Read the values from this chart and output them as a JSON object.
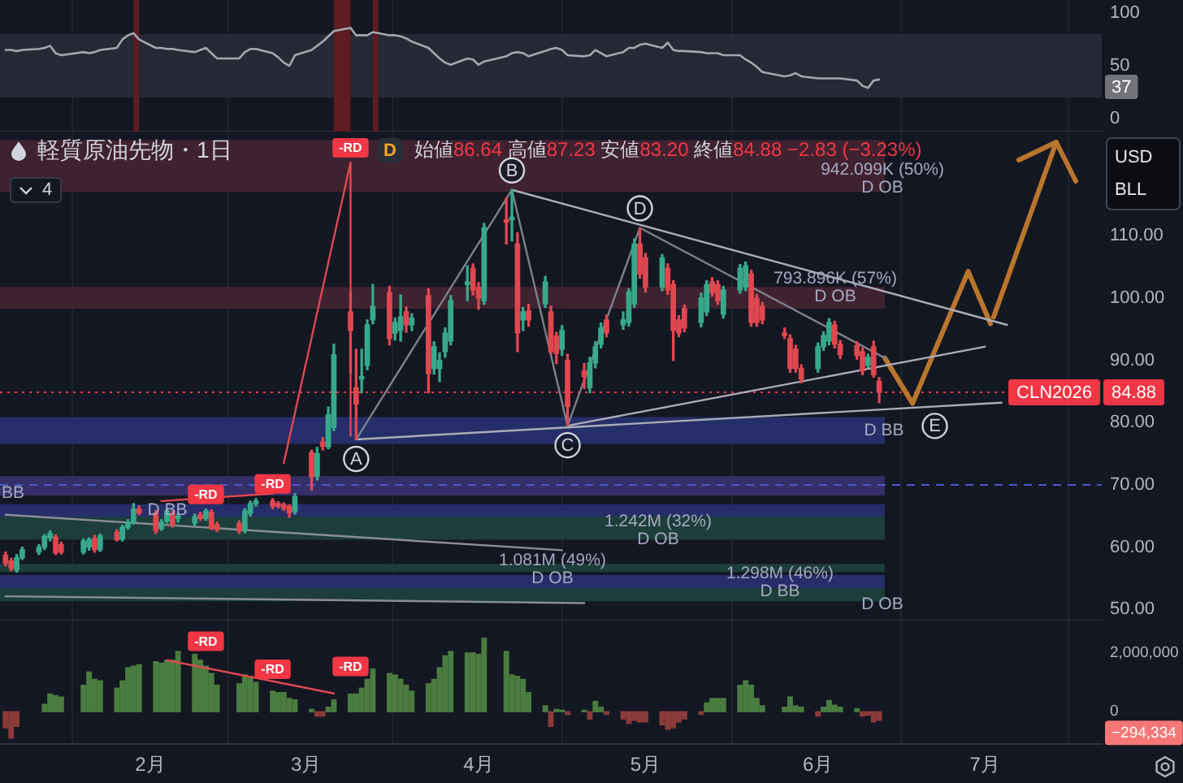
{
  "chart_data": [
    {
      "type": "line",
      "x": [
        "--01-06",
        "--01-07",
        "--01-08",
        "--01-09",
        "--01-12",
        "--01-13",
        "--01-14",
        "--01-15",
        "--01-16",
        "--01-20",
        "--01-21",
        "--01-22",
        "--01-23",
        "--01-26",
        "--01-27",
        "--01-28",
        "--01-29",
        "--01-30",
        "--02-02",
        "--02-03",
        "--02-04",
        "--02-05",
        "--02-06",
        "--02-09",
        "--02-10",
        "--02-11",
        "--02-12",
        "--02-13",
        "--02-17",
        "--02-18",
        "--02-19",
        "--02-20",
        "--02-23",
        "--02-24",
        "--02-25",
        "--02-26",
        "--02-27",
        "--03-02",
        "--03-03",
        "--03-04",
        "--03-05",
        "--03-06",
        "--03-09",
        "--03-10",
        "--03-11",
        "--03-12",
        "--03-13",
        "--03-16",
        "--03-17",
        "--03-18",
        "--03-19",
        "--03-20",
        "--03-23",
        "--03-24",
        "--03-25",
        "--03-26",
        "--03-27",
        "--03-30",
        "--03-31",
        "--04-01",
        "--04-02",
        "--04-06",
        "--04-07",
        "--04-08",
        "--04-09",
        "--04-10",
        "--04-13",
        "--04-14",
        "--04-15",
        "--04-16",
        "--04-17",
        "--04-20",
        "--04-21",
        "--04-22",
        "--04-23",
        "--04-24",
        "--04-27",
        "--04-28",
        "--04-29",
        "--04-30",
        "--05-01",
        "--05-04",
        "--05-05",
        "--05-06",
        "--05-07",
        "--05-08",
        "--05-11",
        "--05-12",
        "--05-13",
        "--05-14",
        "--05-15",
        "--05-18",
        "--05-19",
        "--05-20",
        "--05-21",
        "--05-22",
        "--05-26",
        "--05-27",
        "--05-28",
        "--05-29",
        "--06-01",
        "--06-02",
        "--06-03",
        "--06-04",
        "--06-05",
        "--06-08",
        "--06-09",
        "--06-10",
        "--06-11",
        "--06-12"
      ],
      "values": [
        65,
        65,
        64,
        65,
        66,
        67,
        69,
        62,
        60,
        63,
        62,
        63,
        65,
        67,
        75,
        79,
        81,
        75,
        67,
        67,
        66,
        66,
        65,
        63,
        65,
        67,
        62,
        57,
        57,
        63,
        66,
        66,
        62,
        58,
        53,
        50,
        60,
        65,
        69,
        73,
        78,
        83,
        86,
        79,
        79,
        79,
        82,
        79,
        79,
        78,
        76,
        73,
        67,
        62,
        57,
        53,
        51,
        57,
        56,
        51,
        54,
        59,
        62,
        63,
        62,
        59,
        64,
        66,
        67,
        65,
        60,
        59,
        60,
        65,
        62,
        59,
        63,
        67,
        67,
        70,
        71,
        67,
        72,
        65,
        64,
        64,
        63,
        62,
        62,
        62,
        60,
        60,
        56,
        53,
        49,
        44,
        40,
        41,
        43,
        40,
        38,
        38,
        38,
        38,
        38,
        36,
        31,
        29,
        36,
        37
      ],
      "color": "#a3a6af",
      "annotations": [
        "37"
      ],
      "xlim": [
        "--01-05",
        "--07-22"
      ],
      "xticks": [
        {
          "value": "--02-01",
          "label": null
        },
        {
          "value": "--03-01",
          "label": null
        },
        {
          "value": "--04-01",
          "label": null
        },
        {
          "value": "--05-01",
          "label": null
        },
        {
          "value": "--06-01",
          "label": null
        },
        {
          "value": "--07-01",
          "label": null
        }
      ],
      "ylim": [
        -12.5,
        112.5
      ],
      "yticks": [
        0,
        50,
        100
      ],
      "bands": [
        {
          "axis": "y",
          "from": 20,
          "to": 80,
          "color": "#252935"
        },
        {
          "axis": "x",
          "from": "--01-29",
          "to": "--01-30",
          "color": "#5e1b22"
        },
        {
          "axis": "x",
          "from": "--03-06",
          "to": "--03-09",
          "color": "#5e1b22"
        },
        {
          "axis": "x",
          "from": "--03-13",
          "to": "--03-14",
          "color": "#5e1b22"
        }
      ],
      "grid": "x",
      "tick_labels": "y"
    },
    {
      "type": "candlestick",
      "title": "軽質原油先物・1日",
      "subtitle": "始値86.64 高値87.23 安値83.20 終値84.88 −2.83 (−3.23%)",
      "ylabel": "USD\nBLL",
      "x": [
        "--01-06",
        "--01-07",
        "--01-08",
        "--01-09",
        "--01-12",
        "--01-13",
        "--01-14",
        "--01-15",
        "--01-16",
        "--01-20",
        "--01-21",
        "--01-22",
        "--01-23",
        "--01-26",
        "--01-27",
        "--01-28",
        "--01-29",
        "--01-30",
        "--02-02",
        "--02-03",
        "--02-04",
        "--02-05",
        "--02-06",
        "--02-09",
        "--02-10",
        "--02-11",
        "--02-12",
        "--02-13",
        "--02-17",
        "--02-18",
        "--02-19",
        "--02-20",
        "--02-23",
        "--02-24",
        "--02-25",
        "--02-26",
        "--02-27",
        "--03-02",
        "--03-03",
        "--03-04",
        "--03-05",
        "--03-06",
        "--03-09",
        "--03-10",
        "--03-11",
        "--03-12",
        "--03-13",
        "--03-16",
        "--03-17",
        "--03-18",
        "--03-19",
        "--03-20",
        "--03-23",
        "--03-24",
        "--03-25",
        "--03-26",
        "--03-27",
        "--03-30",
        "--03-31",
        "--04-01",
        "--04-02",
        "--04-06",
        "--04-07",
        "--04-08",
        "--04-09",
        "--04-10",
        "--04-13",
        "--04-14",
        "--04-15",
        "--04-16",
        "--04-17",
        "--04-20",
        "--04-21",
        "--04-22",
        "--04-23",
        "--04-24",
        "--04-27",
        "--04-28",
        "--04-29",
        "--04-30",
        "--05-01",
        "--05-04",
        "--05-05",
        "--05-06",
        "--05-07",
        "--05-08",
        "--05-11",
        "--05-12",
        "--05-13",
        "--05-14",
        "--05-15",
        "--05-18",
        "--05-19",
        "--05-20",
        "--05-21",
        "--05-22",
        "--05-26",
        "--05-27",
        "--05-28",
        "--05-29",
        "--06-01",
        "--06-02",
        "--06-03",
        "--06-04",
        "--06-05",
        "--06-08",
        "--06-09",
        "--06-10",
        "--06-11",
        "--06-12"
      ],
      "ohlc": [
        [
          58.7,
          59.2,
          57.0,
          57.4
        ],
        [
          57.8,
          58.2,
          56.2,
          56.6
        ],
        [
          56.3,
          58.8,
          56.0,
          58.3
        ],
        [
          58.3,
          60.0,
          58.0,
          59.6
        ],
        [
          59.2,
          60.4,
          58.8,
          60.0
        ],
        [
          60.0,
          62.0,
          59.6,
          61.7
        ],
        [
          61.5,
          62.6,
          61.0,
          62.2
        ],
        [
          61.6,
          62.0,
          58.8,
          59.1
        ],
        [
          60.4,
          60.8,
          58.9,
          59.2
        ],
        [
          59.2,
          61.3,
          58.9,
          61.0
        ],
        [
          60.0,
          61.5,
          59.5,
          61.2
        ],
        [
          61.4,
          61.9,
          59.2,
          59.6
        ],
        [
          59.6,
          62.1,
          59.3,
          61.8
        ],
        [
          62.4,
          62.8,
          61.0,
          61.2
        ],
        [
          61.3,
          63.5,
          61.0,
          63.2
        ],
        [
          63.2,
          64.4,
          62.9,
          64.0
        ],
        [
          64.0,
          67.0,
          63.7,
          66.1
        ],
        [
          66.1,
          66.6,
          65.2,
          65.5
        ],
        [
          65.5,
          65.9,
          62.2,
          62.6
        ],
        [
          63.0,
          64.4,
          62.7,
          64.0
        ],
        [
          64.2,
          66.2,
          63.9,
          65.8
        ],
        [
          65.4,
          65.8,
          63.2,
          63.6
        ],
        [
          64.6,
          65.4,
          64.0,
          65.0
        ],
        [
          63.9,
          65.3,
          63.5,
          64.9
        ],
        [
          65.2,
          65.6,
          64.3,
          64.6
        ],
        [
          64.6,
          66.1,
          64.3,
          65.8
        ],
        [
          65.6,
          66.0,
          62.8,
          63.0
        ],
        [
          63.6,
          64.0,
          62.5,
          62.8
        ],
        [
          63.8,
          64.2,
          62.2,
          62.6
        ],
        [
          62.6,
          66.2,
          62.3,
          65.8
        ],
        [
          65.4,
          67.4,
          65.0,
          67.0
        ],
        [
          67.0,
          67.8,
          66.6,
          67.4
        ],
        [
          67.4,
          67.8,
          66.2,
          66.6
        ],
        [
          67.0,
          67.3,
          66.3,
          66.6
        ],
        [
          66.8,
          67.1,
          65.9,
          66.2
        ],
        [
          66.5,
          66.8,
          64.8,
          65.5
        ],
        [
          65.7,
          68.6,
          65.3,
          68.1
        ],
        [
          75.2,
          75.6,
          69.2,
          71.3
        ],
        [
          71.4,
          76.0,
          70.8,
          75.0
        ],
        [
          76.9,
          77.6,
          75.6,
          76.2
        ],
        [
          76.1,
          82.5,
          75.8,
          81.3
        ],
        [
          79.2,
          92.6,
          78.7,
          90.9
        ],
        [
          97.8,
          101.0,
          88.0,
          94.8
        ],
        [
          85.6,
          91.8,
          77.3,
          83.0
        ],
        [
          87.0,
          91.8,
          84.8,
          87.4
        ],
        [
          89.2,
          96.5,
          88.5,
          95.7
        ],
        [
          96.5,
          102.2,
          95.9,
          98.7
        ],
        [
          100.9,
          101.9,
          92.5,
          93.5
        ],
        [
          94.4,
          96.8,
          93.3,
          96.1
        ],
        [
          94.8,
          100.5,
          93.1,
          97.0
        ],
        [
          97.8,
          98.6,
          94.5,
          95.7
        ],
        [
          95.7,
          97.5,
          94.8,
          96.8
        ],
        [
          100.4,
          101.5,
          84.8,
          87.9
        ],
        [
          88.7,
          93.0,
          87.8,
          92.2
        ],
        [
          88.7,
          91.2,
          86.6,
          90.0
        ],
        [
          91.4,
          95.2,
          90.5,
          94.4
        ],
        [
          93.1,
          100.4,
          92.5,
          99.6
        ],
        [
          102.2,
          105.2,
          99.6,
          102.6
        ],
        [
          104.8,
          105.5,
          100.5,
          101.3
        ],
        [
          101.7,
          102.5,
          98.2,
          100.0
        ],
        [
          99.6,
          112.0,
          99.0,
          111.3
        ],
        [
          112.6,
          116.1,
          108.7,
          112.2
        ],
        [
          112.6,
          117.4,
          109.2,
          113.0
        ],
        [
          108.7,
          110.5,
          91.4,
          94.4
        ],
        [
          96.5,
          98.5,
          94.8,
          97.8
        ],
        [
          98.0,
          99.0,
          95.5,
          96.5
        ],
        [
          99.1,
          103.5,
          98.5,
          102.6
        ],
        [
          97.8,
          98.7,
          91.0,
          91.4
        ],
        [
          93.9,
          94.5,
          89.5,
          91.1
        ],
        [
          91.8,
          95.6,
          90.8,
          94.8
        ],
        [
          90.0,
          91.0,
          79.5,
          82.6
        ],
        [
          88.3,
          89.5,
          85.5,
          87.4
        ],
        [
          85.6,
          90.5,
          84.8,
          89.6
        ],
        [
          89.6,
          93.0,
          88.8,
          92.2
        ],
        [
          92.6,
          96.0,
          92.0,
          95.2
        ],
        [
          96.5,
          97.3,
          93.8,
          94.4
        ],
        [
          95.7,
          97.8,
          95.0,
          96.5
        ],
        [
          96.1,
          101.5,
          95.5,
          101.0
        ],
        [
          99.1,
          109.5,
          98.5,
          108.7
        ],
        [
          108.7,
          111.3,
          103.2,
          103.9
        ],
        [
          106.5,
          107.2,
          101.0,
          101.8
        ],
        [
          101.8,
          107.0,
          101.2,
          106.5
        ],
        [
          104.8,
          105.5,
          100.6,
          101.3
        ],
        [
          102.2,
          102.8,
          90.0,
          94.8
        ],
        [
          96.5,
          97.2,
          93.8,
          94.4
        ],
        [
          98.3,
          98.9,
          94.6,
          95.2
        ],
        [
          96.1,
          100.8,
          95.4,
          100.0
        ],
        [
          97.8,
          102.8,
          97.2,
          102.2
        ],
        [
          102.6,
          103.3,
          100.3,
          100.9
        ],
        [
          102.2,
          102.8,
          99.0,
          99.6
        ],
        [
          97.4,
          101.9,
          96.8,
          101.3
        ],
        [
          101.3,
          105.4,
          100.8,
          104.8
        ],
        [
          101.8,
          105.8,
          101.2,
          105.2
        ],
        [
          103.9,
          104.5,
          95.5,
          96.1
        ],
        [
          100.0,
          100.6,
          95.5,
          96.1
        ],
        [
          98.7,
          99.3,
          95.9,
          96.5
        ],
        [
          94.4,
          95.2,
          93.5,
          94.0
        ],
        [
          93.5,
          94.1,
          88.1,
          88.7
        ],
        [
          91.8,
          92.4,
          88.1,
          88.7
        ],
        [
          88.7,
          89.3,
          86.4,
          87.0
        ],
        [
          88.7,
          92.8,
          88.1,
          92.2
        ],
        [
          92.2,
          94.6,
          91.6,
          94.0
        ],
        [
          93.1,
          96.7,
          92.5,
          96.1
        ],
        [
          95.7,
          96.3,
          92.0,
          92.6
        ],
        [
          92.6,
          93.2,
          90.3,
          90.9
        ],
        [
          92.4,
          93.0,
          90.2,
          90.8
        ],
        [
          91.4,
          92.0,
          87.7,
          88.3
        ],
        [
          89.2,
          91.0,
          88.8,
          90.5
        ],
        [
          92.2,
          93.1,
          87.3,
          87.71
        ],
        [
          86.64,
          87.23,
          83.2,
          84.88
        ]
      ],
      "colors": [
        "#e0474f",
        "#e0474f",
        "#37a98a",
        "#37a98a",
        "#37a98a",
        "#37a98a",
        "#37a98a",
        "#e0474f",
        "#e0474f",
        "#37a98a",
        "#37a98a",
        "#e0474f",
        "#37a98a",
        "#e0474f",
        "#37a98a",
        "#37a98a",
        "#37a98a",
        "#e0474f",
        "#e0474f",
        "#37a98a",
        "#37a98a",
        "#e0474f",
        "#37a98a",
        "#37a98a",
        "#e0474f",
        "#37a98a",
        "#e0474f",
        "#e0474f",
        "#e0474f",
        "#37a98a",
        "#37a98a",
        "#37a98a",
        "#e0474f",
        "#e0474f",
        "#e0474f",
        "#e0474f",
        "#37a98a",
        "#e0474f",
        "#37a98a",
        "#e0474f",
        "#37a98a",
        "#37a98a",
        "#e0474f",
        "#e0474f",
        "#37a98a",
        "#37a98a",
        "#37a98a",
        "#e0474f",
        "#37a98a",
        "#37a98a",
        "#e0474f",
        "#37a98a",
        "#e0474f",
        "#37a98a",
        "#37a98a",
        "#37a98a",
        "#37a98a",
        "#37a98a",
        "#e0474f",
        "#e0474f",
        "#37a98a",
        "#e0474f",
        "#37a98a",
        "#e0474f",
        "#37a98a",
        "#e0474f",
        "#37a98a",
        "#e0474f",
        "#e0474f",
        "#37a98a",
        "#e0474f",
        "#e0474f",
        "#37a98a",
        "#37a98a",
        "#37a98a",
        "#e0474f",
        "#37a98a",
        "#37a98a",
        "#37a98a",
        "#e0474f",
        "#e0474f",
        "#37a98a",
        "#e0474f",
        "#e0474f",
        "#e0474f",
        "#e0474f",
        "#37a98a",
        "#37a98a",
        "#e0474f",
        "#e0474f",
        "#37a98a",
        "#37a98a",
        "#37a98a",
        "#e0474f",
        "#e0474f",
        "#e0474f",
        "#e0474f",
        "#e0474f",
        "#e0474f",
        "#e0474f",
        "#37a98a",
        "#37a98a",
        "#37a98a",
        "#e0474f",
        "#e0474f",
        "#e0474f",
        "#e0474f",
        "#37a98a",
        "#e0474f",
        "#e0474f"
      ],
      "series": [
        {
          "type": "line",
          "x": [
            "--03-10",
            "--04-07",
            "--04-17",
            "--04-30",
            "--06-13"
          ],
          "values": [
            77.3,
            117.4,
            79.5,
            111.3,
            90.4
          ],
          "color": "#7d808a"
        },
        {
          "type": "line",
          "x": [
            "--04-07",
            "--07-05"
          ],
          "values": [
            117.4,
            95.7
          ],
          "color": "#a9acb6"
        },
        {
          "type": "line",
          "x": [
            "--03-10",
            "--07-04"
          ],
          "values": [
            77.3,
            83.2
          ],
          "color": "#a9acb6"
        },
        {
          "type": "line",
          "x": [
            "--04-17",
            "--07-01"
          ],
          "values": [
            79.5,
            92.2
          ],
          "color": "#a9acb6"
        },
        {
          "type": "line",
          "x": [
            "--01-06",
            "--04-16"
          ],
          "values": [
            65.2,
            59.5
          ],
          "color": "#8a8d96"
        },
        {
          "type": "line",
          "x": [
            "--01-06",
            "--04-20"
          ],
          "values": [
            52.1,
            51.0
          ],
          "color": "#8a8d96"
        },
        {
          "type": "line",
          "x": [
            "--02-03",
            "--02-23"
          ],
          "values": [
            67.4,
            68.6
          ],
          "color": "#e0474f"
        },
        {
          "type": "line",
          "x": [
            "--02-25",
            "--03-09",
            "--03-09"
          ],
          "values": [
            73.5,
            121.8,
            77.9
          ],
          "color": "#e0474f"
        },
        {
          "type": "line",
          "x": [
            "--06-13",
            "--06-18",
            "--06-28",
            "--07-02"
          ],
          "values": [
            90.4,
            83.1,
            104.3,
            95.9
          ],
          "color": "#b8752c"
        }
      ],
      "annotations": [
        "D",
        "4",
        {
          "text": "A",
          "x": "--03-10",
          "y": 77.3
        },
        {
          "text": "B",
          "x": "--04-07",
          "y": 117.4
        },
        {
          "text": "C",
          "x": "--04-17",
          "y": 79.5
        },
        {
          "text": "D",
          "x": "--04-30",
          "y": 111.3
        },
        {
          "text": "E",
          "x": "--06-22",
          "y": 82.6
        },
        {
          "text": "-RD",
          "x": "--02-11",
          "y": 66.1
        },
        {
          "text": "-RD",
          "x": "--02-23",
          "y": 67.8
        },
        {
          "text": "-RD",
          "x": "--03-09",
          "y": 121.8
        }
      ],
      "bands": [
        {
          "axis": "y",
          "from": 117.1,
          "to": 125.4,
          "label": "942.099K (50%)\nD OB",
          "color": "#3f2230"
        },
        {
          "axis": "y",
          "from": 98.3,
          "to": 101.8,
          "label": "793.896K (57%)\nD OB",
          "color": "#3f2230"
        },
        {
          "axis": "y",
          "from": 76.6,
          "to": 80.9,
          "label": "D BB",
          "color": "#262e6a"
        },
        {
          "axis": "y",
          "from": 68.3,
          "to": 71.4,
          "label": "BB",
          "color": "#352e68"
        },
        {
          "axis": "y",
          "from": 64.9,
          "to": 66.9,
          "label": "D BB",
          "color": "#262e6a"
        },
        {
          "axis": "y",
          "from": 61.2,
          "to": 64.9,
          "label": "1.242M (32%)\nD OB",
          "color": "#1d3d3b"
        },
        {
          "axis": "y",
          "from": 56.0,
          "to": 57.3,
          "label": "1.081M (49%)\nD OB",
          "color": "#1d3d3b"
        },
        {
          "axis": "y",
          "from": 53.4,
          "to": 55.5,
          "label": "1.298M (46%)\nD BB",
          "color": "#262e6a"
        },
        {
          "axis": "y",
          "from": 51.3,
          "to": 53.4,
          "label": "D OB",
          "color": "#1d3d3b"
        }
      ],
      "ref_lines": [
        {
          "axis": "y",
          "value": 84.88,
          "label": "CLN2026 84.88",
          "color": "#f23645",
          "line_style": "dotted"
        },
        {
          "axis": "y",
          "value": 70,
          "color": "#4a58c8",
          "line_style": "dashed"
        }
      ],
      "xlim": [
        "--01-05",
        "--07-22"
      ],
      "xticks": [
        {
          "value": "--02-01",
          "label": null
        },
        {
          "value": "--03-01",
          "label": null
        },
        {
          "value": "--04-01",
          "label": null
        },
        {
          "value": "--05-01",
          "label": null
        },
        {
          "value": "--06-01",
          "label": null
        },
        {
          "value": "--07-01",
          "label": null
        }
      ],
      "ylim": [
        48.2,
        126.5
      ],
      "yticks": [
        {
          "value": 50,
          "label": "50.00"
        },
        {
          "value": 60,
          "label": "60.00"
        },
        {
          "value": 70,
          "label": "70.00"
        },
        {
          "value": 80,
          "label": "80.00"
        },
        {
          "value": 90,
          "label": "90.00"
        },
        {
          "value": 100,
          "label": "100.00"
        },
        {
          "value": 110,
          "label": "110.00"
        }
      ],
      "grid": "x",
      "tick_labels": "y"
    },
    {
      "type": "bar",
      "x": [
        "--01-06",
        "--01-07",
        "--01-08",
        "--01-09",
        "--01-12",
        "--01-13",
        "--01-14",
        "--01-15",
        "--01-16",
        "--01-20",
        "--01-21",
        "--01-22",
        "--01-23",
        "--01-26",
        "--01-27",
        "--01-28",
        "--01-29",
        "--01-30",
        "--02-02",
        "--02-03",
        "--02-04",
        "--02-05",
        "--02-06",
        "--02-09",
        "--02-10",
        "--02-11",
        "--02-12",
        "--02-13",
        "--02-17",
        "--02-18",
        "--02-19",
        "--02-20",
        "--02-23",
        "--02-24",
        "--02-25",
        "--02-26",
        "--02-27",
        "--03-02",
        "--03-03",
        "--03-04",
        "--03-05",
        "--03-06",
        "--03-09",
        "--03-10",
        "--03-11",
        "--03-12",
        "--03-13",
        "--03-16",
        "--03-17",
        "--03-18",
        "--03-19",
        "--03-20",
        "--03-23",
        "--03-24",
        "--03-25",
        "--03-26",
        "--03-27",
        "--03-30",
        "--03-31",
        "--04-01",
        "--04-02",
        "--04-06",
        "--04-07",
        "--04-08",
        "--04-09",
        "--04-10",
        "--04-13",
        "--04-14",
        "--04-15",
        "--04-16",
        "--04-17",
        "--04-20",
        "--04-21",
        "--04-22",
        "--04-23",
        "--04-24",
        "--04-27",
        "--04-28",
        "--04-29",
        "--04-30",
        "--05-01",
        "--05-04",
        "--05-05",
        "--05-06",
        "--05-07",
        "--05-08",
        "--05-11",
        "--05-12",
        "--05-13",
        "--05-14",
        "--05-15",
        "--05-18",
        "--05-19",
        "--05-20",
        "--05-21",
        "--05-22",
        "--05-26",
        "--05-27",
        "--05-28",
        "--05-29",
        "--06-01",
        "--06-02",
        "--06-03",
        "--06-04",
        "--06-05",
        "--06-08",
        "--06-09",
        "--06-10",
        "--06-11",
        "--06-12"
      ],
      "values": [
        -550000,
        -900000,
        -500000,
        null,
        null,
        250000,
        600000,
        550000,
        500000,
        900000,
        1350000,
        1100000,
        1050000,
        800000,
        1050000,
        1500000,
        1550000,
        1600000,
        1700000,
        1650000,
        1750000,
        1750000,
        2050000,
        1950000,
        1750000,
        1550000,
        1300000,
        900000,
        950000,
        1250000,
        1200000,
        1000000,
        700000,
        650000,
        650000,
        450000,
        400000,
        80000,
        -150000,
        -150000,
        150000,
        400000,
        600000,
        600000,
        800000,
        1100000,
        1450000,
        1300000,
        1250000,
        1100000,
        900000,
        700000,
        950000,
        1100000,
        1500000,
        1900000,
        2050000,
        2000000,
        2000000,
        1950000,
        2500000,
        2050000,
        1250000,
        1200000,
        1100000,
        650000,
        200000,
        -500000,
        80000,
        50000,
        -100000,
        50000,
        -250000,
        350000,
        150000,
        -100000,
        -250000,
        -400000,
        -300000,
        -350000,
        -350000,
        -450000,
        -600000,
        -550000,
        -350000,
        -250000,
        -100000,
        300000,
        450000,
        450000,
        450000,
        900000,
        1050000,
        900000,
        450000,
        200000,
        150000,
        500000,
        200000,
        150000,
        -150000,
        150000,
        380000,
        220000,
        150000,
        100000,
        -150000,
        -120000,
        -350000,
        -294334
      ],
      "colors": [
        "#8b3a3a",
        "#8b3a3a",
        "#8b3a3a",
        null,
        null,
        "#4a7c3f",
        "#4a7c3f",
        "#4a7c3f",
        "#4a7c3f",
        "#4a7c3f",
        "#4a7c3f",
        "#4a7c3f",
        "#4a7c3f",
        "#4a7c3f",
        "#4a7c3f",
        "#4a7c3f",
        "#4a7c3f",
        "#4a7c3f",
        "#4a7c3f",
        "#4a7c3f",
        "#4a7c3f",
        "#4a7c3f",
        "#4a7c3f",
        "#4a7c3f",
        "#4a7c3f",
        "#4a7c3f",
        "#4a7c3f",
        "#4a7c3f",
        "#4a7c3f",
        "#4a7c3f",
        "#4a7c3f",
        "#4a7c3f",
        "#4a7c3f",
        "#4a7c3f",
        "#4a7c3f",
        "#4a7c3f",
        "#4a7c3f",
        "#4a7c3f",
        "#8b3a3a",
        "#8b3a3a",
        "#4a7c3f",
        "#4a7c3f",
        "#4a7c3f",
        "#4a7c3f",
        "#4a7c3f",
        "#4a7c3f",
        "#4a7c3f",
        "#4a7c3f",
        "#4a7c3f",
        "#4a7c3f",
        "#4a7c3f",
        "#4a7c3f",
        "#4a7c3f",
        "#4a7c3f",
        "#4a7c3f",
        "#4a7c3f",
        "#4a7c3f",
        "#4a7c3f",
        "#4a7c3f",
        "#4a7c3f",
        "#4a7c3f",
        "#4a7c3f",
        "#4a7c3f",
        "#4a7c3f",
        "#4a7c3f",
        "#4a7c3f",
        "#4a7c3f",
        "#8b3a3a",
        "#4a7c3f",
        "#4a7c3f",
        "#8b3a3a",
        "#4a7c3f",
        "#8b3a3a",
        "#4a7c3f",
        "#4a7c3f",
        "#8b3a3a",
        "#8b3a3a",
        "#8b3a3a",
        "#8b3a3a",
        "#8b3a3a",
        "#8b3a3a",
        "#8b3a3a",
        "#8b3a3a",
        "#8b3a3a",
        "#8b3a3a",
        "#8b3a3a",
        "#8b3a3a",
        "#4a7c3f",
        "#4a7c3f",
        "#4a7c3f",
        "#4a7c3f",
        "#4a7c3f",
        "#4a7c3f",
        "#4a7c3f",
        "#4a7c3f",
        "#4a7c3f",
        "#4a7c3f",
        "#4a7c3f",
        "#4a7c3f",
        "#4a7c3f",
        "#8b3a3a",
        "#4a7c3f",
        "#4a7c3f",
        "#4a7c3f",
        "#4a7c3f",
        "#4a7c3f",
        "#8b3a3a",
        "#8b3a3a",
        "#8b3a3a",
        "#8b3a3a"
      ],
      "series": [
        {
          "type": "line",
          "x": [
            "--02-04",
            "--03-06"
          ],
          "values": [
            1750000,
            620000
          ],
          "color": "#e0474f"
        }
      ],
      "annotations": [
        {
          "text": "-RD",
          "x": "--02-11",
          "y": 1550000
        },
        {
          "text": "-RD",
          "x": "--02-23",
          "y": 700000
        },
        {
          "text": "-RD",
          "x": "--03-09",
          "y": 600000
        },
        "−294,334"
      ],
      "xlim": [
        "--01-05",
        "--07-22"
      ],
      "xticks": [
        {
          "value": "--02-01",
          "label": "2月"
        },
        {
          "value": "--03-01",
          "label": "3月"
        },
        {
          "value": "--04-01",
          "label": "4月"
        },
        {
          "value": "--05-01",
          "label": "5月"
        },
        {
          "value": "--06-01",
          "label": "6月"
        },
        {
          "value": "--07-01",
          "label": "7月"
        }
      ],
      "ylim": [
        -1100000,
        3100000
      ],
      "yticks": [
        {
          "value": 0,
          "label": "0"
        },
        {
          "value": 2000000,
          "label": "2,000,000"
        }
      ],
      "grid": "x"
    }
  ]
}
